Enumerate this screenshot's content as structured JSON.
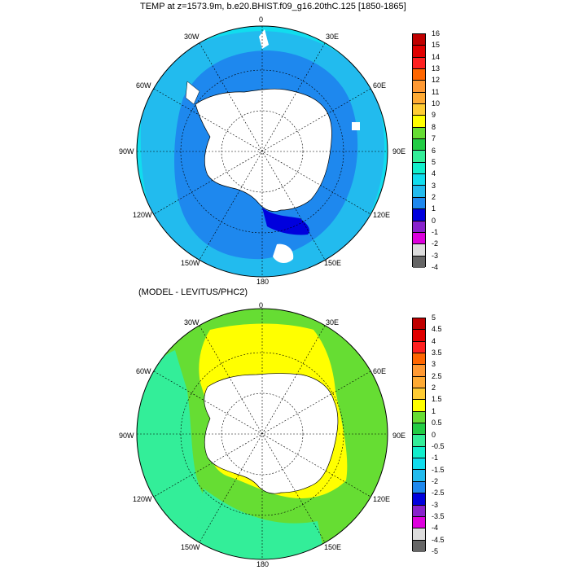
{
  "panels": [
    {
      "title": "TEMP at z=1573.9m, b.e20.BHIST.f09_g16.20thC.125 [1850-1865]",
      "lon_labels": [
        "0",
        "30E",
        "60E",
        "90E",
        "120E",
        "150E",
        "180",
        "150W",
        "120W",
        "90W",
        "60W",
        "30W"
      ],
      "colorbar_labels": [
        "16",
        "15",
        "14",
        "13",
        "12",
        "11",
        "10",
        "9",
        "8",
        "7",
        "6",
        "5",
        "4",
        "3",
        "2",
        "1",
        "0",
        "-1",
        "-2",
        "-3",
        "-4"
      ],
      "colorbar_colors": [
        "#c00000",
        "#e00000",
        "#ff2020",
        "#ff6600",
        "#ff9933",
        "#ffaa33",
        "#ffcc33",
        "#ffff00",
        "#66dd33",
        "#22cc44",
        "#33ee99",
        "#11eecc",
        "#11ddee",
        "#22bbee",
        "#1e88ee",
        "#0000dd",
        "#8822cc",
        "#dd00dd",
        "#dddddd",
        "#666666"
      ]
    },
    {
      "title": "(MODEL - LEVITUS/PHC2)",
      "lon_labels": [
        "0",
        "30E",
        "60E",
        "90E",
        "120E",
        "150E",
        "180",
        "150W",
        "120W",
        "90W",
        "60W",
        "30W"
      ],
      "colorbar_labels": [
        "5",
        "4.5",
        "4",
        "3.5",
        "3",
        "2.5",
        "2",
        "1.5",
        "1",
        "0.5",
        "0",
        "-0.5",
        "-1",
        "-1.5",
        "-2",
        "-2.5",
        "-3",
        "-3.5",
        "-4",
        "-4.5",
        "-5"
      ],
      "colorbar_colors": [
        "#c00000",
        "#e00000",
        "#ff2020",
        "#ff6600",
        "#ff9933",
        "#ffaa33",
        "#ffcc33",
        "#ffff00",
        "#66dd33",
        "#22cc44",
        "#33ee99",
        "#11eecc",
        "#11ddee",
        "#22bbee",
        "#1e88ee",
        "#0000dd",
        "#8822cc",
        "#dd00dd",
        "#dddddd",
        "#666666"
      ]
    }
  ],
  "colors": {
    "panel1_outer": "#11ddee",
    "panel1_mid": "#22bbee",
    "panel1_inner": "#1e88ee",
    "panel1_deep": "#0000dd",
    "panel2_outer": "#66dd33",
    "panel2_cyan": "#33ee99",
    "panel2_yellow": "#ffff00",
    "land": "#ffffff"
  }
}
